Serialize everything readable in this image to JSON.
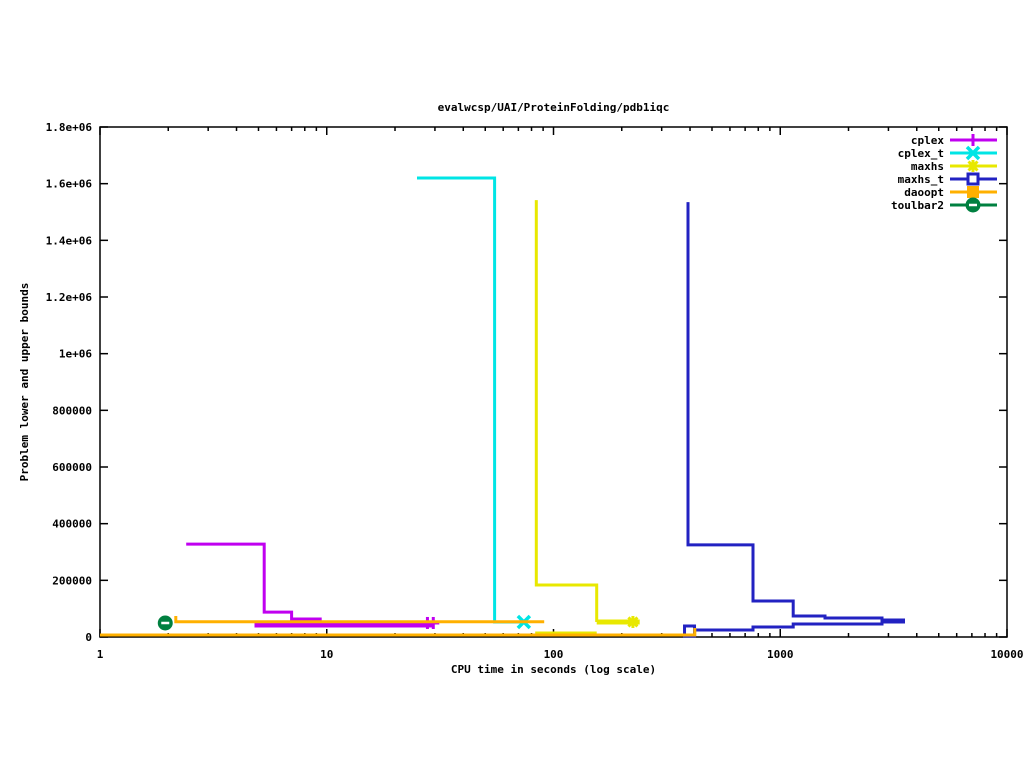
{
  "title": "evalwcsp/UAI/ProteinFolding/pdb1iqc",
  "colors": {
    "background": "#ffffff",
    "axis": "#000000",
    "cplex": "#c000f0",
    "cplex_t": "#00e5e5",
    "maxhs": "#e8e800",
    "maxhs_t": "#2222c2",
    "daoopt": "#ffb000",
    "toulbar2": "#008040"
  },
  "chart_data": {
    "type": "line",
    "title": "evalwcsp/UAI/ProteinFolding/pdb1iqc",
    "xlabel": "CPU time in seconds (log scale)",
    "ylabel": "Problem lower and upper bounds",
    "x_scale": "log",
    "xlim": [
      1,
      10000
    ],
    "ylim": [
      0,
      1800000
    ],
    "x_ticks": [
      1,
      10,
      100,
      1000,
      10000
    ],
    "x_tick_labels": [
      "1",
      "10",
      "100",
      "1000",
      "10000"
    ],
    "y_ticks": [
      0,
      200000,
      400000,
      600000,
      800000,
      1000000,
      1200000,
      1400000,
      1600000,
      1800000
    ],
    "y_tick_labels": [
      "0",
      "200000",
      "400000",
      "600000",
      "800000",
      "1e+06",
      "1.2e+06",
      "1.4e+06",
      "1.6e+06",
      "1.8e+06"
    ],
    "grid": false,
    "legend_position": "top-right",
    "series": [
      {
        "name": "cplex",
        "color": "#c000f0",
        "marker": "plus",
        "paths": [
          {
            "w": 3,
            "pts": [
              [
                2.4,
                328000
              ],
              [
                5.3,
                328000
              ],
              [
                5.3,
                88000
              ],
              [
                7.0,
                88000
              ],
              [
                7.0,
                63500
              ],
              [
                9.5,
                63500
              ]
            ]
          },
          {
            "w": 5,
            "pts": [
              [
                4.8,
                42400
              ],
              [
                29.5,
                42400
              ]
            ]
          }
        ],
        "markers_at": [
          [
            27.8,
            49500
          ],
          [
            29.5,
            49500
          ]
        ]
      },
      {
        "name": "cplex_t",
        "color": "#00e5e5",
        "marker": "x",
        "paths": [
          {
            "w": 3,
            "pts": [
              [
                25,
                1620000
              ],
              [
                55,
                1620000
              ],
              [
                55,
                53000
              ],
              [
                74,
                53000
              ]
            ]
          }
        ],
        "markers_at": [
          [
            74,
            53000
          ]
        ]
      },
      {
        "name": "maxhs",
        "color": "#e8e800",
        "marker": "star",
        "paths": [
          {
            "w": 3,
            "pts": [
              [
                84,
                1542000
              ],
              [
                84,
                183500
              ],
              [
                155,
                183500
              ],
              [
                155,
                53000
              ]
            ]
          },
          {
            "w": 5,
            "pts": [
              [
                155,
                53000
              ],
              [
                240,
                53000
              ]
            ]
          },
          {
            "w": 3,
            "pts": [
              [
                83,
                14000
              ],
              [
                155,
                14000
              ]
            ]
          }
        ],
        "markers_at": [
          [
            224,
            53000
          ]
        ]
      },
      {
        "name": "maxhs_t",
        "color": "#2222c2",
        "marker": "square-open",
        "paths": [
          {
            "w": 3,
            "pts": [
              [
                392,
                1535000
              ],
              [
                392,
                325000
              ],
              [
                758,
                325000
              ],
              [
                758,
                127000
              ],
              [
                1140,
                127000
              ],
              [
                1140,
                74000
              ],
              [
                1575,
                74000
              ],
              [
                1575,
                67000
              ],
              [
                2810,
                67000
              ],
              [
                2810,
                56500
              ]
            ]
          },
          {
            "w": 3,
            "pts": [
              [
                398,
                24700
              ],
              [
                758,
                24700
              ],
              [
                758,
                35300
              ],
              [
                1140,
                35300
              ],
              [
                1140,
                45900
              ],
              [
                2810,
                45900
              ],
              [
                2810,
                56500
              ]
            ]
          },
          {
            "w": 5,
            "pts": [
              [
                2810,
                56500
              ],
              [
                3550,
                56500
              ]
            ]
          }
        ],
        "markers_at": [
          [
            398,
            21200
          ]
        ]
      },
      {
        "name": "daoopt",
        "color": "#ffb000",
        "marker": "square-filled",
        "paths": [
          {
            "w": 3,
            "pts": [
              [
                2.16,
                74000
              ],
              [
                2.16,
                54000
              ],
              [
                91,
                54000
              ]
            ]
          },
          {
            "w": 3,
            "pts": [
              [
                1,
                7000
              ],
              [
                420,
                7000
              ],
              [
                420,
                31800
              ]
            ]
          }
        ],
        "markers_at": []
      },
      {
        "name": "toulbar2",
        "color": "#008040",
        "marker": "circle-dash",
        "paths": [],
        "markers_at": [
          [
            1.94,
            49400
          ]
        ]
      }
    ]
  }
}
